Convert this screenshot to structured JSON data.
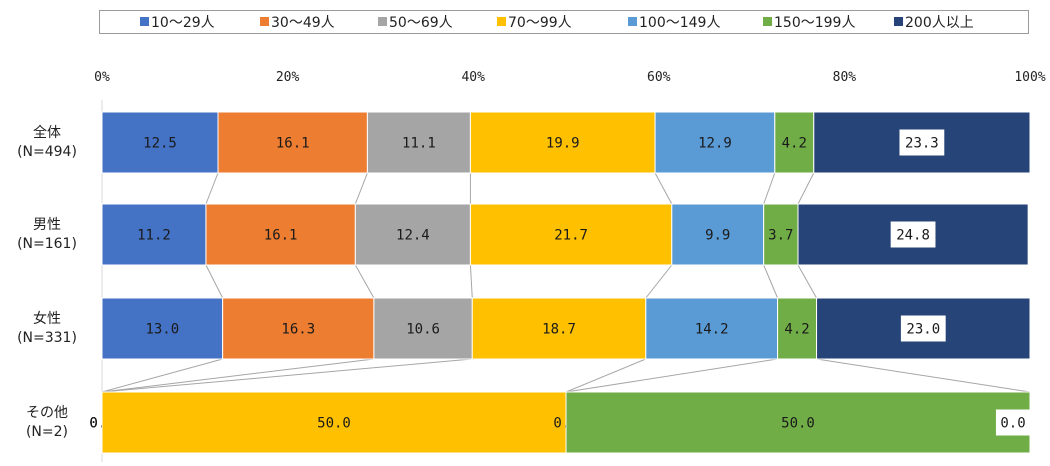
{
  "chart_data": {
    "type": "bar",
    "stacked": "percent",
    "orientation": "horizontal",
    "categories": [
      {
        "name": "全体",
        "n": "(N=494)"
      },
      {
        "name": "男性",
        "n": "(N=161)"
      },
      {
        "name": "女性",
        "n": "(N=331)"
      },
      {
        "name": "その他",
        "n": "(N=2)"
      }
    ],
    "series": [
      {
        "name": "10〜29人",
        "color": "#4472c4",
        "values": [
          12.5,
          11.2,
          13.0,
          0.0
        ],
        "labels": [
          "12.5",
          "11.2",
          "13.0",
          "0.0"
        ]
      },
      {
        "name": "30〜49人",
        "color": "#ed7d31",
        "values": [
          16.1,
          16.1,
          16.3,
          0.0
        ],
        "labels": [
          "16.1",
          "16.1",
          "16.3",
          "0.0"
        ]
      },
      {
        "name": "50〜69人",
        "color": "#a5a5a5",
        "values": [
          11.1,
          12.4,
          10.6,
          0.0
        ],
        "labels": [
          "11.1",
          "12.4",
          "10.6",
          "0.0"
        ]
      },
      {
        "name": "70〜99人",
        "color": "#ffc000",
        "values": [
          19.9,
          21.7,
          18.7,
          50.0
        ],
        "labels": [
          "19.9",
          "21.7",
          "18.7",
          "50.0"
        ]
      },
      {
        "name": "100〜149人",
        "color": "#5b9bd5",
        "values": [
          12.9,
          9.9,
          14.2,
          0.0
        ],
        "labels": [
          "12.9",
          "9.9",
          "14.2",
          "0.0"
        ]
      },
      {
        "name": "150〜199人",
        "color": "#70ad47",
        "values": [
          4.2,
          3.7,
          4.2,
          50.0
        ],
        "labels": [
          "4.2",
          "3.7",
          "4.2",
          "50.0"
        ]
      },
      {
        "name": "200人以上",
        "color": "#264478",
        "values": [
          23.3,
          24.8,
          23.0,
          0.0
        ],
        "labels": [
          "23.3",
          "24.8",
          "23.0",
          "0.0"
        ]
      }
    ],
    "xlim": [
      0,
      100
    ],
    "x_ticks": [
      "0%",
      "20%",
      "40%",
      "60%",
      "80%",
      "100%"
    ],
    "legend_position": "top",
    "series_lines": true,
    "grid": false
  }
}
